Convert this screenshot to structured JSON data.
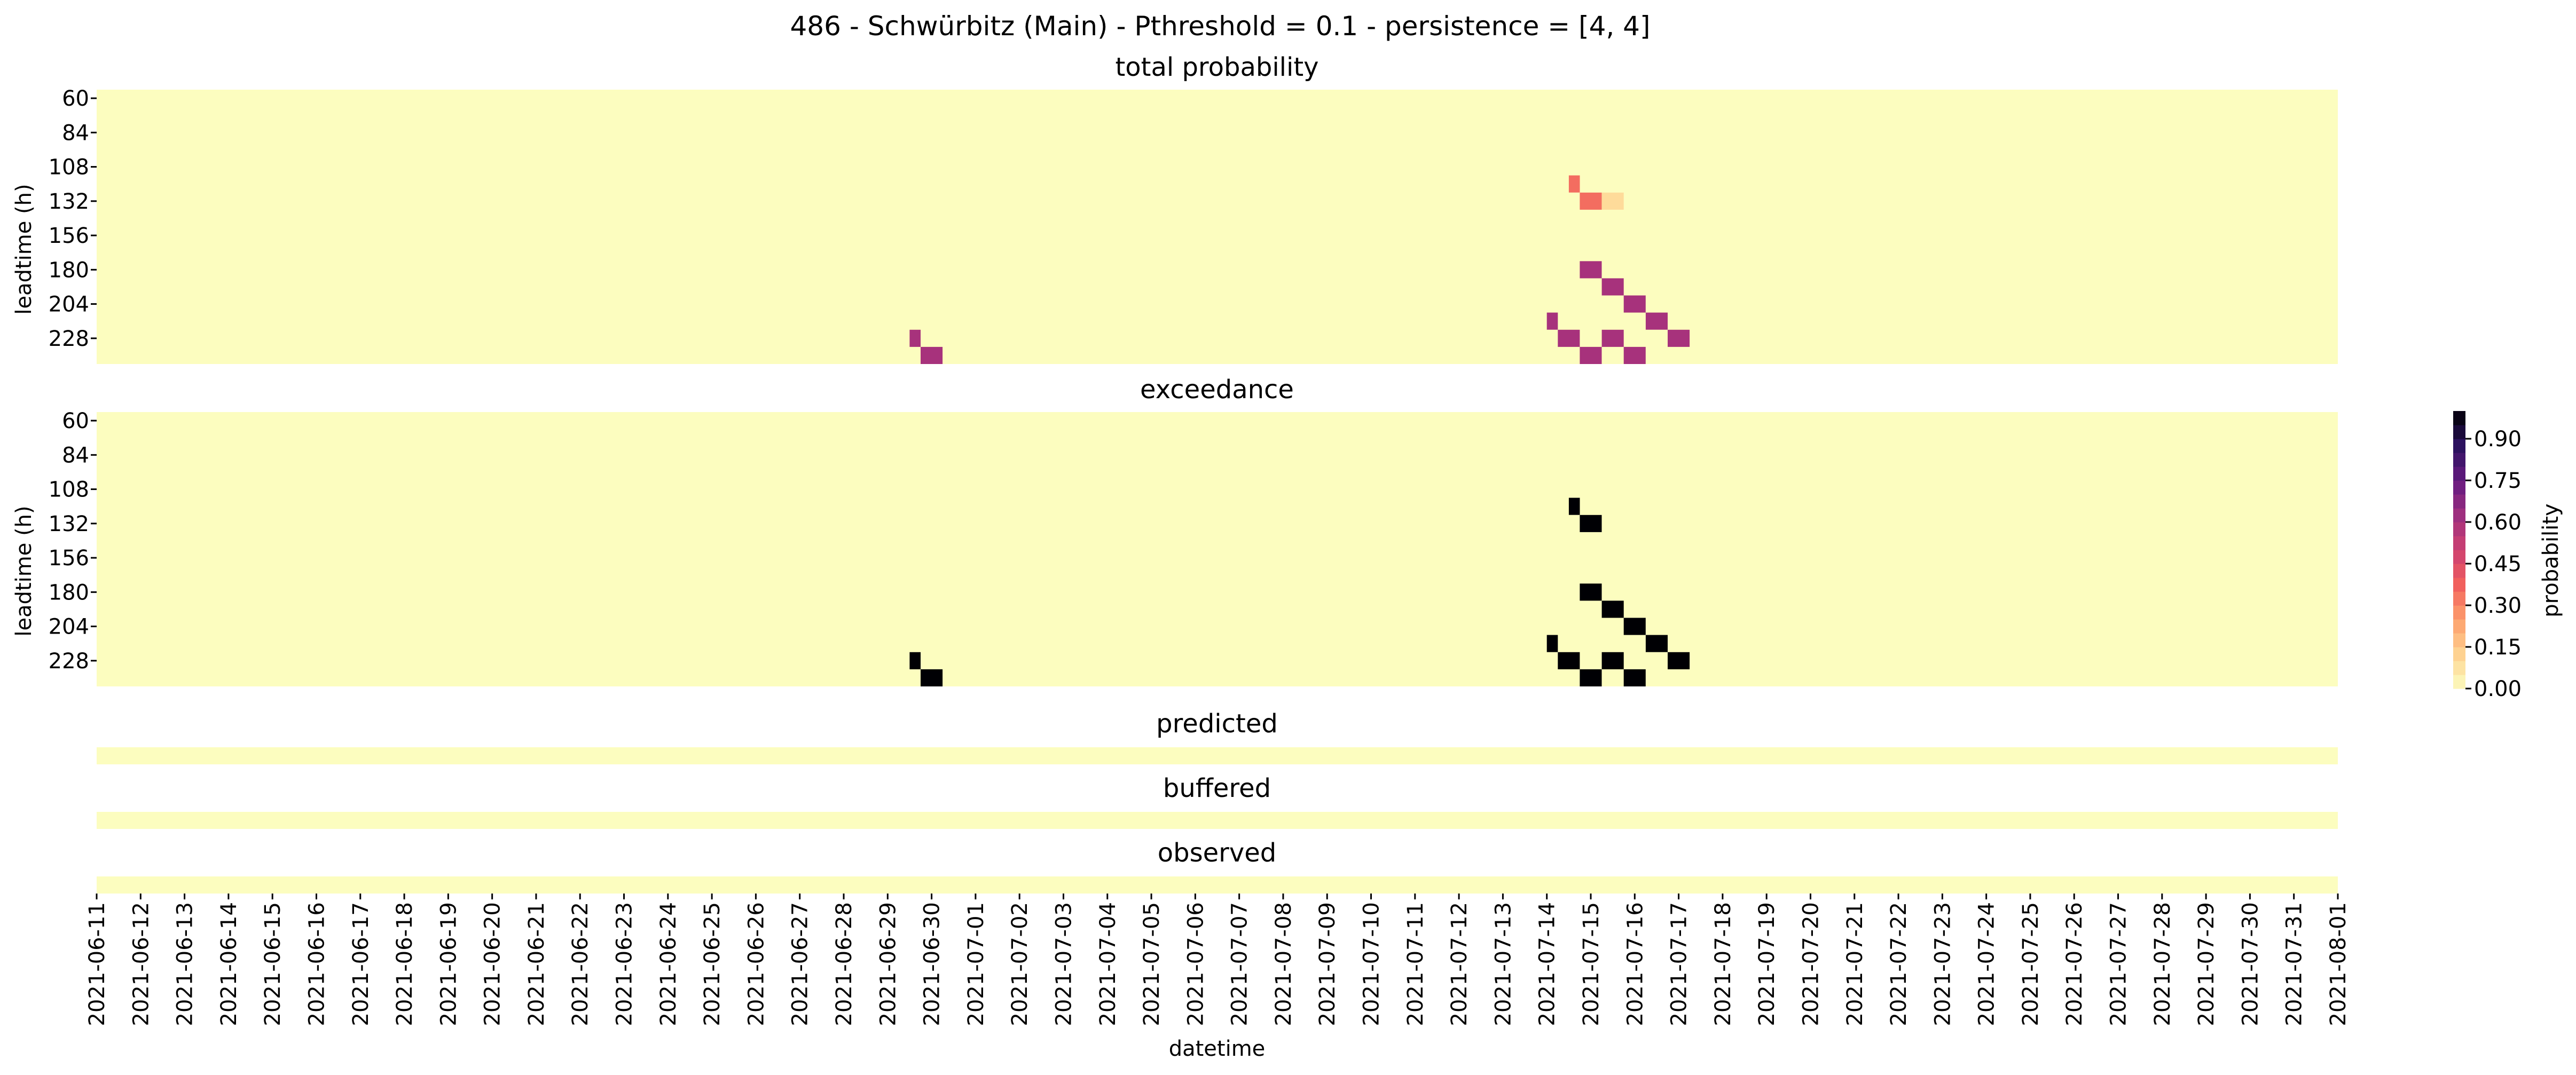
{
  "chart_data": {
    "type": "heatmap",
    "title": "486 - Schwürbitz (Main) - Pthreshold = 0.1 - persistence = [4, 4]",
    "xlabel": "datetime",
    "ylabel": "leadtime (h)",
    "dates": [
      "2021-06-11",
      "2021-06-12",
      "2021-06-13",
      "2021-06-14",
      "2021-06-15",
      "2021-06-16",
      "2021-06-17",
      "2021-06-18",
      "2021-06-19",
      "2021-06-20",
      "2021-06-21",
      "2021-06-22",
      "2021-06-23",
      "2021-06-24",
      "2021-06-25",
      "2021-06-26",
      "2021-06-27",
      "2021-06-28",
      "2021-06-29",
      "2021-06-30",
      "2021-07-01",
      "2021-07-02",
      "2021-07-03",
      "2021-07-04",
      "2021-07-05",
      "2021-07-06",
      "2021-07-07",
      "2021-07-08",
      "2021-07-09",
      "2021-07-10",
      "2021-07-11",
      "2021-07-12",
      "2021-07-13",
      "2021-07-14",
      "2021-07-15",
      "2021-07-16",
      "2021-07-17",
      "2021-07-18",
      "2021-07-19",
      "2021-07-20",
      "2021-07-21",
      "2021-07-22",
      "2021-07-23",
      "2021-07-24",
      "2021-07-25",
      "2021-07-26",
      "2021-07-27",
      "2021-07-28",
      "2021-07-29",
      "2021-07-30",
      "2021-07-31",
      "2021-08-01"
    ],
    "leadtime_ticks": [
      60,
      84,
      108,
      132,
      156,
      180,
      204,
      228
    ],
    "leadtimes_h": [
      60,
      72,
      84,
      96,
      108,
      120,
      132,
      144,
      156,
      168,
      180,
      192,
      204,
      216,
      228,
      240
    ],
    "colorbar": {
      "label": "probability",
      "range": [
        0,
        1
      ],
      "ticks": [
        "0.00",
        "0.15",
        "0.30",
        "0.45",
        "0.60",
        "0.75",
        "0.90"
      ],
      "colormap": "magma_r",
      "step": 0.05
    },
    "panels": [
      {
        "title": "total probability",
        "cells": [
          {
            "start": "2021-07-14 12:00",
            "end": "2021-07-14 18:00",
            "leadtime": 120,
            "value": 0.35
          },
          {
            "start": "2021-07-14 18:00",
            "end": "2021-07-15 06:00",
            "leadtime": 132,
            "value": 0.35
          },
          {
            "start": "2021-07-15 06:00",
            "end": "2021-07-15 18:00",
            "leadtime": 132,
            "value": 0.1
          },
          {
            "start": "2021-07-14 18:00",
            "end": "2021-07-15 06:00",
            "leadtime": 180,
            "value": 0.6
          },
          {
            "start": "2021-07-15 06:00",
            "end": "2021-07-15 18:00",
            "leadtime": 192,
            "value": 0.6
          },
          {
            "start": "2021-07-15 18:00",
            "end": "2021-07-16 06:00",
            "leadtime": 204,
            "value": 0.6
          },
          {
            "start": "2021-07-16 06:00",
            "end": "2021-07-16 18:00",
            "leadtime": 216,
            "value": 0.6
          },
          {
            "start": "2021-07-14 00:00",
            "end": "2021-07-14 06:00",
            "leadtime": 216,
            "value": 0.6
          },
          {
            "start": "2021-07-14 06:00",
            "end": "2021-07-14 18:00",
            "leadtime": 228,
            "value": 0.6
          },
          {
            "start": "2021-07-15 06:00",
            "end": "2021-07-15 18:00",
            "leadtime": 228,
            "value": 0.6
          },
          {
            "start": "2021-07-16 18:00",
            "end": "2021-07-17 06:00",
            "leadtime": 228,
            "value": 0.6
          },
          {
            "start": "2021-07-14 18:00",
            "end": "2021-07-15 06:00",
            "leadtime": 240,
            "value": 0.6
          },
          {
            "start": "2021-07-15 18:00",
            "end": "2021-07-16 06:00",
            "leadtime": 240,
            "value": 0.6
          },
          {
            "start": "2021-06-29 12:00",
            "end": "2021-06-29 18:00",
            "leadtime": 228,
            "value": 0.6
          },
          {
            "start": "2021-06-29 18:00",
            "end": "2021-06-30 06:00",
            "leadtime": 240,
            "value": 0.6
          }
        ]
      },
      {
        "title": "exceedance",
        "cells": [
          {
            "start": "2021-07-14 12:00",
            "end": "2021-07-14 18:00",
            "leadtime": 120,
            "value": 1
          },
          {
            "start": "2021-07-14 18:00",
            "end": "2021-07-15 06:00",
            "leadtime": 132,
            "value": 1
          },
          {
            "start": "2021-07-14 18:00",
            "end": "2021-07-15 06:00",
            "leadtime": 180,
            "value": 1
          },
          {
            "start": "2021-07-15 06:00",
            "end": "2021-07-15 18:00",
            "leadtime": 192,
            "value": 1
          },
          {
            "start": "2021-07-15 18:00",
            "end": "2021-07-16 06:00",
            "leadtime": 204,
            "value": 1
          },
          {
            "start": "2021-07-16 06:00",
            "end": "2021-07-16 18:00",
            "leadtime": 216,
            "value": 1
          },
          {
            "start": "2021-07-14 00:00",
            "end": "2021-07-14 06:00",
            "leadtime": 216,
            "value": 1
          },
          {
            "start": "2021-07-14 06:00",
            "end": "2021-07-14 18:00",
            "leadtime": 228,
            "value": 1
          },
          {
            "start": "2021-07-15 06:00",
            "end": "2021-07-15 18:00",
            "leadtime": 228,
            "value": 1
          },
          {
            "start": "2021-07-16 18:00",
            "end": "2021-07-17 06:00",
            "leadtime": 228,
            "value": 1
          },
          {
            "start": "2021-07-14 18:00",
            "end": "2021-07-15 06:00",
            "leadtime": 240,
            "value": 1
          },
          {
            "start": "2021-07-15 18:00",
            "end": "2021-07-16 06:00",
            "leadtime": 240,
            "value": 1
          },
          {
            "start": "2021-06-29 12:00",
            "end": "2021-06-29 18:00",
            "leadtime": 228,
            "value": 1
          },
          {
            "start": "2021-06-29 18:00",
            "end": "2021-06-30 06:00",
            "leadtime": 240,
            "value": 1
          }
        ]
      },
      {
        "title": "predicted",
        "cells": []
      },
      {
        "title": "buffered",
        "cells": []
      },
      {
        "title": "observed",
        "cells": []
      }
    ]
  }
}
